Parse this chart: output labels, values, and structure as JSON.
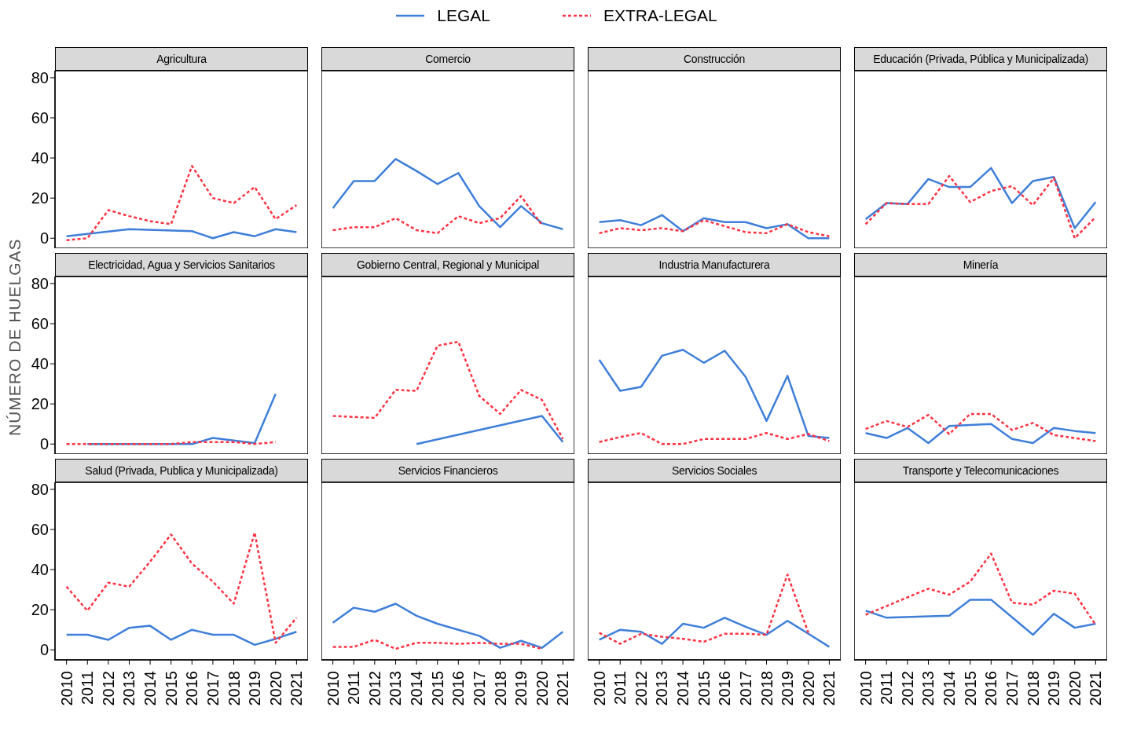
{
  "chart_data": [
    {
      "type": "line",
      "title": "Agricultura",
      "legend": "top",
      "tick_labels": "y",
      "xlim": [
        2009.45,
        2021.55
      ],
      "xticks": [
        2010,
        2011,
        2012,
        2013,
        2014,
        2015,
        2016,
        2017,
        2018,
        2019,
        2020,
        2021
      ],
      "ylim": [
        -5,
        83.5
      ],
      "yticks": [
        0,
        20,
        40,
        60,
        80
      ],
      "series": [
        {
          "name": "LEGAL",
          "color": "#3f7fd9",
          "line_style": "solid",
          "x": [
            2010,
            2013,
            2016,
            2017,
            2018,
            2019,
            2020,
            2021
          ],
          "values": [
            1,
            4.5,
            3.5,
            0,
            3,
            1,
            4.5,
            3
          ]
        },
        {
          "name": "EXTRA-LEGAL",
          "color": "#ff3344",
          "line_style": "dotted",
          "x": [
            2010,
            2011,
            2012,
            2013,
            2014,
            2015,
            2016,
            2017,
            2018,
            2019,
            2020,
            2021
          ],
          "values": [
            -1,
            0,
            14,
            11,
            8.5,
            7,
            36,
            20,
            17.5,
            25.5,
            9.5,
            16.5
          ]
        }
      ]
    },
    {
      "type": "line",
      "title": "Comercio",
      "tick_labels": false,
      "xlim": [
        2009.45,
        2021.55
      ],
      "xticks": [
        2010,
        2011,
        2012,
        2013,
        2014,
        2015,
        2016,
        2017,
        2018,
        2019,
        2020,
        2021
      ],
      "ylim": [
        -5,
        83.5
      ],
      "yticks": [
        0,
        20,
        40,
        60,
        80
      ],
      "series": [
        {
          "color": "#3f7fd9",
          "line_style": "solid",
          "x": [
            2010,
            2011,
            2012,
            2013,
            2014,
            2015,
            2016,
            2017,
            2018,
            2019,
            2020,
            2021
          ],
          "values": [
            15,
            28.5,
            28.5,
            39.5,
            33.5,
            27,
            32.5,
            16,
            5.5,
            16,
            7.5,
            4.5
          ]
        },
        {
          "color": "#ff3344",
          "line_style": "dotted",
          "x": [
            2010,
            2011,
            2012,
            2013,
            2014,
            2015,
            2016,
            2017,
            2018,
            2019,
            2020
          ],
          "values": [
            4,
            5.5,
            5.5,
            10,
            4,
            2.5,
            11,
            7.5,
            10,
            21,
            6.5
          ]
        }
      ]
    },
    {
      "type": "line",
      "title": "Construcción",
      "tick_labels": false,
      "xlim": [
        2009.45,
        2021.55
      ],
      "xticks": [
        2010,
        2011,
        2012,
        2013,
        2014,
        2015,
        2016,
        2017,
        2018,
        2019,
        2020,
        2021
      ],
      "ylim": [
        -5,
        83.5
      ],
      "yticks": [
        0,
        20,
        40,
        60,
        80
      ],
      "series": [
        {
          "color": "#3f7fd9",
          "line_style": "solid",
          "x": [
            2010,
            2011,
            2012,
            2013,
            2014,
            2015,
            2016,
            2017,
            2018,
            2019,
            2020,
            2021
          ],
          "values": [
            8,
            9,
            6.5,
            11.5,
            3.5,
            10,
            8,
            8,
            5,
            7,
            0,
            0
          ]
        },
        {
          "color": "#ff3344",
          "line_style": "dotted",
          "x": [
            2010,
            2011,
            2012,
            2013,
            2014,
            2015,
            2016,
            2017,
            2018,
            2019,
            2020,
            2021
          ],
          "values": [
            2.5,
            5,
            4,
            5,
            3.5,
            9,
            6,
            3,
            2.5,
            7,
            3,
            1
          ]
        }
      ]
    },
    {
      "type": "line",
      "title": "Educación (Privada, Pública y Municipalizada)",
      "tick_labels": false,
      "xlim": [
        2009.45,
        2021.55
      ],
      "xticks": [
        2010,
        2011,
        2012,
        2013,
        2014,
        2015,
        2016,
        2017,
        2018,
        2019,
        2020,
        2021
      ],
      "ylim": [
        -5,
        83.5
      ],
      "yticks": [
        0,
        20,
        40,
        60,
        80
      ],
      "series": [
        {
          "color": "#3f7fd9",
          "line_style": "solid",
          "x": [
            2010,
            2011,
            2012,
            2013,
            2014,
            2015,
            2016,
            2017,
            2018,
            2019,
            2020,
            2021
          ],
          "values": [
            9.5,
            17.5,
            17,
            29.5,
            25.5,
            25.5,
            35,
            17.5,
            28.5,
            30.5,
            5,
            18
          ]
        },
        {
          "color": "#ff3344",
          "line_style": "dotted",
          "x": [
            2010,
            2011,
            2012,
            2013,
            2014,
            2015,
            2016,
            2017,
            2018,
            2019,
            2020,
            2021
          ],
          "values": [
            7,
            17.5,
            17,
            17,
            31,
            18,
            23.5,
            26,
            16.5,
            30,
            0,
            10.5
          ]
        }
      ]
    },
    {
      "type": "line",
      "title": "Electricidad, Agua y Servicios Sanitarios",
      "tick_labels": "y",
      "ylabel": "NÚMERO DE HUELGAS",
      "xlim": [
        2009.45,
        2021.55
      ],
      "xticks": [
        2010,
        2011,
        2012,
        2013,
        2014,
        2015,
        2016,
        2017,
        2018,
        2019,
        2020,
        2021
      ],
      "ylim": [
        -5,
        83.5
      ],
      "yticks": [
        0,
        20,
        40,
        60,
        80
      ],
      "series": [
        {
          "color": "#3f7fd9",
          "line_style": "solid",
          "x": [
            2011,
            2012,
            2013,
            2014,
            2015,
            2016,
            2017,
            2019,
            2020
          ],
          "values": [
            0,
            0,
            0,
            0,
            0,
            0,
            3,
            0.5,
            25
          ]
        },
        {
          "color": "#ff3344",
          "line_style": "dotted",
          "x": [
            2010,
            2011,
            2012,
            2013,
            2014,
            2015,
            2016,
            2017,
            2018,
            2019,
            2020
          ],
          "values": [
            0,
            0,
            0,
            0,
            0,
            0,
            1,
            1,
            1,
            0,
            1
          ]
        }
      ]
    },
    {
      "type": "line",
      "title": "Gobierno Central, Regional y Municipal",
      "tick_labels": false,
      "xlim": [
        2009.45,
        2021.55
      ],
      "xticks": [
        2010,
        2011,
        2012,
        2013,
        2014,
        2015,
        2016,
        2017,
        2018,
        2019,
        2020,
        2021
      ],
      "ylim": [
        -5,
        83.5
      ],
      "yticks": [
        0,
        20,
        40,
        60,
        80
      ],
      "series": [
        {
          "color": "#3f7fd9",
          "line_style": "solid",
          "x": [
            2014,
            2020,
            2021
          ],
          "values": [
            0,
            14,
            1
          ]
        },
        {
          "color": "#ff3344",
          "line_style": "dotted",
          "x": [
            2010,
            2011,
            2012,
            2013,
            2014,
            2015,
            2016,
            2017,
            2018,
            2019,
            2020,
            2021
          ],
          "values": [
            14,
            13.5,
            13,
            27,
            26.5,
            49,
            51,
            24,
            15,
            27,
            22,
            2.5
          ]
        }
      ]
    },
    {
      "type": "line",
      "title": "Industria Manufacturera",
      "tick_labels": false,
      "xlim": [
        2009.45,
        2021.55
      ],
      "xticks": [
        2010,
        2011,
        2012,
        2013,
        2014,
        2015,
        2016,
        2017,
        2018,
        2019,
        2020,
        2021
      ],
      "ylim": [
        -5,
        83.5
      ],
      "yticks": [
        0,
        20,
        40,
        60,
        80
      ],
      "series": [
        {
          "color": "#3f7fd9",
          "line_style": "solid",
          "x": [
            2010,
            2011,
            2012,
            2013,
            2014,
            2015,
            2016,
            2017,
            2018,
            2019,
            2020,
            2021
          ],
          "values": [
            42,
            26.5,
            28.5,
            44,
            47,
            40.5,
            46.5,
            33.5,
            11.5,
            34,
            4,
            3
          ]
        },
        {
          "color": "#ff3344",
          "line_style": "dotted",
          "x": [
            2010,
            2011,
            2012,
            2013,
            2014,
            2015,
            2016,
            2017,
            2018,
            2019,
            2020,
            2021
          ],
          "values": [
            1,
            3.5,
            5.5,
            0,
            0,
            2.5,
            2.5,
            2.5,
            5.5,
            2.5,
            5,
            1.5
          ]
        }
      ]
    },
    {
      "type": "line",
      "title": "Minería",
      "tick_labels": false,
      "xlim": [
        2009.45,
        2021.55
      ],
      "xticks": [
        2010,
        2011,
        2012,
        2013,
        2014,
        2015,
        2016,
        2017,
        2018,
        2019,
        2020,
        2021
      ],
      "ylim": [
        -5,
        83.5
      ],
      "yticks": [
        0,
        20,
        40,
        60,
        80
      ],
      "series": [
        {
          "color": "#3f7fd9",
          "line_style": "solid",
          "x": [
            2010,
            2011,
            2012,
            2013,
            2014,
            2015,
            2016,
            2017,
            2018,
            2019,
            2020,
            2021
          ],
          "values": [
            5.5,
            3,
            8,
            0.5,
            9,
            9.5,
            10,
            2.5,
            0.5,
            8,
            6.5,
            5.5
          ]
        },
        {
          "color": "#ff3344",
          "line_style": "dotted",
          "x": [
            2010,
            2011,
            2012,
            2013,
            2014,
            2015,
            2016,
            2017,
            2018,
            2019,
            2020,
            2021
          ],
          "values": [
            7.5,
            11.5,
            8.5,
            14.5,
            5,
            15,
            15,
            7,
            10.5,
            4.5,
            3,
            1.5
          ]
        }
      ]
    },
    {
      "type": "line",
      "title": "Salud (Privada, Publica y Municipalizada)",
      "xlim": [
        2009.45,
        2021.55
      ],
      "xticks": [
        2010,
        2011,
        2012,
        2013,
        2014,
        2015,
        2016,
        2017,
        2018,
        2019,
        2020,
        2021
      ],
      "ylim": [
        -5,
        83.5
      ],
      "yticks": [
        0,
        20,
        40,
        60,
        80
      ],
      "series": [
        {
          "color": "#3f7fd9",
          "line_style": "solid",
          "x": [
            2010,
            2011,
            2012,
            2013,
            2014,
            2015,
            2016,
            2017,
            2018,
            2019,
            2020,
            2021
          ],
          "values": [
            7.5,
            7.5,
            5,
            11,
            12,
            5,
            10,
            7.5,
            7.5,
            2.5,
            5.5,
            9
          ]
        },
        {
          "color": "#ff3344",
          "line_style": "dotted",
          "x": [
            2010,
            2011,
            2012,
            2013,
            2014,
            2015,
            2016,
            2017,
            2018,
            2019,
            2020,
            2021
          ],
          "values": [
            31.5,
            19.5,
            33.5,
            31.5,
            44,
            57.5,
            43,
            34,
            23,
            58.5,
            3.5,
            16
          ]
        }
      ]
    },
    {
      "type": "line",
      "title": "Servicios Financieros",
      "tick_labels": "x",
      "xlim": [
        2009.45,
        2021.55
      ],
      "xticks": [
        2010,
        2011,
        2012,
        2013,
        2014,
        2015,
        2016,
        2017,
        2018,
        2019,
        2020,
        2021
      ],
      "ylim": [
        -5,
        83.5
      ],
      "yticks": [
        0,
        20,
        40,
        60,
        80
      ],
      "series": [
        {
          "color": "#3f7fd9",
          "line_style": "solid",
          "x": [
            2010,
            2011,
            2012,
            2013,
            2014,
            2015,
            2016,
            2017,
            2018,
            2019,
            2020,
            2021
          ],
          "values": [
            13.5,
            21,
            19,
            23,
            17,
            13,
            10,
            7,
            1,
            4.5,
            1,
            9
          ]
        },
        {
          "color": "#ff3344",
          "line_style": "dotted",
          "x": [
            2010,
            2011,
            2012,
            2013,
            2014,
            2015,
            2016,
            2017,
            2018,
            2019,
            2020
          ],
          "values": [
            1.5,
            1.5,
            5,
            0.5,
            3.5,
            3.5,
            3,
            3.5,
            3,
            3,
            0.5
          ]
        }
      ]
    },
    {
      "type": "line",
      "title": "Servicios Sociales",
      "tick_labels": "x",
      "xlim": [
        2009.45,
        2021.55
      ],
      "xticks": [
        2010,
        2011,
        2012,
        2013,
        2014,
        2015,
        2016,
        2017,
        2018,
        2019,
        2020,
        2021
      ],
      "ylim": [
        -5,
        83.5
      ],
      "yticks": [
        0,
        20,
        40,
        60,
        80
      ],
      "series": [
        {
          "color": "#3f7fd9",
          "line_style": "solid",
          "x": [
            2010,
            2011,
            2012,
            2013,
            2014,
            2015,
            2016,
            2017,
            2018,
            2019,
            2020,
            2021
          ],
          "values": [
            5,
            10,
            9,
            3,
            13,
            11,
            16,
            11.5,
            7.5,
            14.5,
            8,
            1.5
          ]
        },
        {
          "color": "#ff3344",
          "line_style": "dotted",
          "x": [
            2010,
            2011,
            2012,
            2013,
            2014,
            2015,
            2016,
            2017,
            2018,
            2019,
            2020
          ],
          "values": [
            8.5,
            3,
            8,
            6.5,
            5.5,
            4,
            8,
            8,
            7.5,
            37.5,
            8.5
          ]
        }
      ]
    },
    {
      "type": "line",
      "title": "Transporte y Telecomunicaciones",
      "tick_labels": "x",
      "xlim": [
        2009.45,
        2021.55
      ],
      "xticks": [
        2010,
        2011,
        2012,
        2013,
        2014,
        2015,
        2016,
        2017,
        2018,
        2019,
        2020,
        2021
      ],
      "ylim": [
        -5,
        83.5
      ],
      "yticks": [
        0,
        20,
        40,
        60,
        80
      ],
      "series": [
        {
          "color": "#3f7fd9",
          "line_style": "solid",
          "x": [
            2010,
            2011,
            2014,
            2015,
            2016,
            2018,
            2019,
            2020,
            2021
          ],
          "values": [
            19.5,
            16,
            17,
            25,
            25,
            7.5,
            18,
            11,
            13
          ]
        },
        {
          "color": "#ff3344",
          "line_style": "dotted",
          "x": [
            2010,
            2013,
            2014,
            2015,
            2016,
            2017,
            2018,
            2019,
            2020,
            2021
          ],
          "values": [
            17.5,
            30.5,
            27.5,
            34,
            48,
            23.5,
            22.5,
            29.5,
            28,
            12.5
          ]
        }
      ]
    }
  ]
}
